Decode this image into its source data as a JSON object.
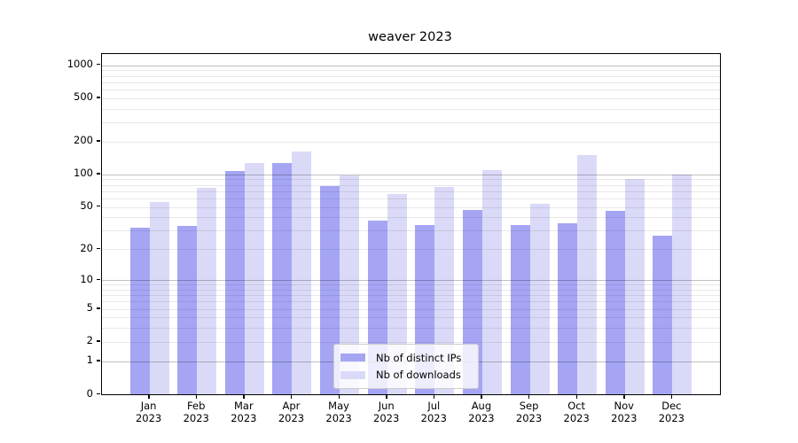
{
  "title": "weaver 2023",
  "chart_data": {
    "type": "bar",
    "title": "weaver 2023",
    "yscale": "log1p",
    "ylim": [
      0,
      1280
    ],
    "grid": "on",
    "legend_position": "lower center",
    "months": [
      "Jan",
      "Feb",
      "Mar",
      "Apr",
      "May",
      "Jun",
      "Jul",
      "Aug",
      "Sep",
      "Oct",
      "Nov",
      "Dec"
    ],
    "year": "2023",
    "categories": [
      "Jan 2023",
      "Feb 2023",
      "Mar 2023",
      "Apr 2023",
      "May 2023",
      "Jun 2023",
      "Jul 2023",
      "Aug 2023",
      "Sep 2023",
      "Oct 2023",
      "Nov 2023",
      "Dec 2023"
    ],
    "y_ticks": [
      0,
      1,
      2,
      5,
      10,
      20,
      50,
      100,
      200,
      500,
      1000
    ],
    "major_gridlines": [
      1,
      10,
      100,
      1000
    ],
    "series": [
      {
        "name": "Nb of distinct IPs",
        "color": "#a5a5f4",
        "values": [
          32,
          33,
          108,
          127,
          78,
          37,
          34,
          47,
          34,
          35,
          46,
          27
        ]
      },
      {
        "name": "Nb of downloads",
        "color": "#dadaf8",
        "values": [
          56,
          75,
          128,
          162,
          98,
          66,
          76,
          110,
          54,
          150,
          90,
          100
        ]
      }
    ]
  },
  "colors": {
    "background": "#ffffff",
    "grid_minor": "#e9e9e9",
    "grid_major": "#c0c0c0",
    "axis": "#000000",
    "legend_border": "#cccccc"
  }
}
